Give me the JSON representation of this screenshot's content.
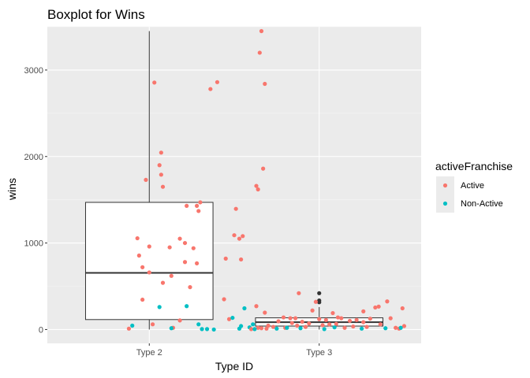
{
  "chart_data": {
    "type": "boxplot",
    "title": "Boxplot for Wins",
    "xlabel": "Type ID",
    "ylabel": "wins",
    "categories": [
      "Type 2",
      "Type 3"
    ],
    "ylim": [
      -160,
      3500
    ],
    "yticks": [
      0,
      1000,
      2000,
      3000
    ],
    "grid": true,
    "boxes": [
      {
        "category": "Type 2",
        "min": 0,
        "q1": 115,
        "median": 655,
        "q3": 1470,
        "max": 3450,
        "outliers": []
      },
      {
        "category": "Type 3",
        "min": 0,
        "q1": 40,
        "median": 85,
        "q3": 135,
        "max": 260,
        "outliers": [
          420,
          335,
          315
        ]
      }
    ],
    "legend": {
      "title": "activeFranchise",
      "placement": "right",
      "entries": [
        {
          "label": "Active",
          "color": "#F8766D"
        },
        {
          "label": "Non-Active",
          "color": "#00BFC4"
        }
      ]
    },
    "points": [
      {
        "x": 0.88,
        "y": 10,
        "g": "Active"
      },
      {
        "x": 0.93,
        "y": 1055,
        "g": "Active"
      },
      {
        "x": 0.94,
        "y": 855,
        "g": "Active"
      },
      {
        "x": 0.96,
        "y": 720,
        "g": "Active"
      },
      {
        "x": 0.96,
        "y": 345,
        "g": "Active"
      },
      {
        "x": 0.98,
        "y": 1730,
        "g": "Active"
      },
      {
        "x": 1.0,
        "y": 960,
        "g": "Active"
      },
      {
        "x": 1.0,
        "y": 660,
        "g": "Active"
      },
      {
        "x": 1.02,
        "y": 60,
        "g": "Active"
      },
      {
        "x": 1.03,
        "y": 2855,
        "g": "Active"
      },
      {
        "x": 1.06,
        "y": 1900,
        "g": "Active"
      },
      {
        "x": 1.07,
        "y": 1790,
        "g": "Active"
      },
      {
        "x": 1.07,
        "y": 2045,
        "g": "Active"
      },
      {
        "x": 1.08,
        "y": 1650,
        "g": "Active"
      },
      {
        "x": 1.08,
        "y": 540,
        "g": "Active"
      },
      {
        "x": 1.12,
        "y": 950,
        "g": "Active"
      },
      {
        "x": 1.13,
        "y": 620,
        "g": "Active"
      },
      {
        "x": 1.14,
        "y": 20,
        "g": "Active"
      },
      {
        "x": 1.18,
        "y": 105,
        "g": "Active"
      },
      {
        "x": 1.18,
        "y": 1050,
        "g": "Active"
      },
      {
        "x": 1.21,
        "y": 780,
        "g": "Active"
      },
      {
        "x": 1.21,
        "y": 1000,
        "g": "Active"
      },
      {
        "x": 1.22,
        "y": 1430,
        "g": "Active"
      },
      {
        "x": 1.24,
        "y": 490,
        "g": "Active"
      },
      {
        "x": 1.26,
        "y": 940,
        "g": "Active"
      },
      {
        "x": 1.28,
        "y": 765,
        "g": "Active"
      },
      {
        "x": 1.28,
        "y": 1430,
        "g": "Active"
      },
      {
        "x": 1.29,
        "y": 1370,
        "g": "Active"
      },
      {
        "x": 1.3,
        "y": 1470,
        "g": "Active"
      },
      {
        "x": 1.36,
        "y": 2780,
        "g": "Active"
      },
      {
        "x": 1.4,
        "y": 2860,
        "g": "Active"
      },
      {
        "x": 1.45,
        "y": 820,
        "g": "Active"
      },
      {
        "x": 1.44,
        "y": 350,
        "g": "Active"
      },
      {
        "x": 1.47,
        "y": 120,
        "g": "Active"
      },
      {
        "x": 1.5,
        "y": 1090,
        "g": "Active"
      },
      {
        "x": 1.51,
        "y": 1395,
        "g": "Active"
      },
      {
        "x": 1.53,
        "y": 1050,
        "g": "Active"
      },
      {
        "x": 1.54,
        "y": 810,
        "g": "Active"
      },
      {
        "x": 1.55,
        "y": 1080,
        "g": "Active"
      },
      {
        "x": 1.63,
        "y": 1660,
        "g": "Active"
      },
      {
        "x": 1.64,
        "y": 1620,
        "g": "Active"
      },
      {
        "x": 1.65,
        "y": 3200,
        "g": "Active"
      },
      {
        "x": 1.66,
        "y": 3450,
        "g": "Active"
      },
      {
        "x": 1.67,
        "y": 1860,
        "g": "Active"
      },
      {
        "x": 1.68,
        "y": 2840,
        "g": "Active"
      },
      {
        "x": 1.68,
        "y": 195,
        "g": "Active"
      },
      {
        "x": 1.63,
        "y": 270,
        "g": "Active"
      },
      {
        "x": 0.9,
        "y": 45,
        "g": "Non-Active"
      },
      {
        "x": 1.06,
        "y": 260,
        "g": "Non-Active"
      },
      {
        "x": 1.13,
        "y": 15,
        "g": "Non-Active"
      },
      {
        "x": 1.22,
        "y": 270,
        "g": "Non-Active"
      },
      {
        "x": 1.29,
        "y": 60,
        "g": "Non-Active"
      },
      {
        "x": 1.31,
        "y": 5,
        "g": "Non-Active"
      },
      {
        "x": 1.34,
        "y": 5,
        "g": "Non-Active"
      },
      {
        "x": 1.38,
        "y": 0,
        "g": "Non-Active"
      },
      {
        "x": 1.49,
        "y": 135,
        "g": "Non-Active"
      },
      {
        "x": 1.53,
        "y": 10,
        "g": "Non-Active"
      },
      {
        "x": 1.54,
        "y": 40,
        "g": "Non-Active"
      },
      {
        "x": 1.56,
        "y": 245,
        "g": "Non-Active"
      },
      {
        "x": 1.59,
        "y": 25,
        "g": "Non-Active"
      },
      {
        "x": 1.61,
        "y": 60,
        "g": "Non-Active"
      },
      {
        "x": 1.6,
        "y": 5,
        "g": "Active"
      },
      {
        "x": 1.64,
        "y": 20,
        "g": "Active"
      },
      {
        "x": 1.66,
        "y": 15,
        "g": "Active"
      },
      {
        "x": 1.69,
        "y": 10,
        "g": "Active"
      },
      {
        "x": 1.73,
        "y": 30,
        "g": "Active"
      },
      {
        "x": 1.76,
        "y": 95,
        "g": "Active"
      },
      {
        "x": 1.79,
        "y": 140,
        "g": "Active"
      },
      {
        "x": 1.8,
        "y": 20,
        "g": "Active"
      },
      {
        "x": 1.84,
        "y": 75,
        "g": "Active"
      },
      {
        "x": 1.86,
        "y": 130,
        "g": "Active"
      },
      {
        "x": 1.87,
        "y": 45,
        "g": "Active"
      },
      {
        "x": 1.88,
        "y": 420,
        "g": "Active"
      },
      {
        "x": 1.9,
        "y": 90,
        "g": "Active"
      },
      {
        "x": 1.92,
        "y": 30,
        "g": "Active"
      },
      {
        "x": 1.94,
        "y": 70,
        "g": "Active"
      },
      {
        "x": 1.96,
        "y": 220,
        "g": "Active"
      },
      {
        "x": 1.98,
        "y": 320,
        "g": "Active"
      },
      {
        "x": 2.0,
        "y": 120,
        "g": "Active"
      },
      {
        "x": 2.02,
        "y": 50,
        "g": "Active"
      },
      {
        "x": 2.04,
        "y": 110,
        "g": "Active"
      },
      {
        "x": 2.06,
        "y": 60,
        "g": "Active"
      },
      {
        "x": 2.08,
        "y": 190,
        "g": "Active"
      },
      {
        "x": 2.1,
        "y": 65,
        "g": "Active"
      },
      {
        "x": 2.13,
        "y": 130,
        "g": "Active"
      },
      {
        "x": 2.15,
        "y": 20,
        "g": "Active"
      },
      {
        "x": 2.18,
        "y": 100,
        "g": "Active"
      },
      {
        "x": 2.2,
        "y": 35,
        "g": "Active"
      },
      {
        "x": 2.22,
        "y": 110,
        "g": "Active"
      },
      {
        "x": 2.26,
        "y": 85,
        "g": "Active"
      },
      {
        "x": 2.28,
        "y": 30,
        "g": "Active"
      },
      {
        "x": 2.3,
        "y": 125,
        "g": "Active"
      },
      {
        "x": 2.33,
        "y": 255,
        "g": "Active"
      },
      {
        "x": 2.35,
        "y": 265,
        "g": "Active"
      },
      {
        "x": 2.36,
        "y": 60,
        "g": "Active"
      },
      {
        "x": 2.4,
        "y": 325,
        "g": "Active"
      },
      {
        "x": 2.42,
        "y": 130,
        "g": "Active"
      },
      {
        "x": 2.45,
        "y": 20,
        "g": "Active"
      },
      {
        "x": 2.47,
        "y": 10,
        "g": "Active"
      },
      {
        "x": 2.49,
        "y": 245,
        "g": "Active"
      },
      {
        "x": 2.5,
        "y": 40,
        "g": "Active"
      },
      {
        "x": 2.26,
        "y": 210,
        "g": "Active"
      },
      {
        "x": 2.11,
        "y": 140,
        "g": "Active"
      },
      {
        "x": 1.83,
        "y": 130,
        "g": "Active"
      },
      {
        "x": 1.7,
        "y": 45,
        "g": "Active"
      },
      {
        "x": 1.62,
        "y": 5,
        "g": "Non-Active"
      },
      {
        "x": 1.75,
        "y": 10,
        "g": "Non-Active"
      },
      {
        "x": 1.81,
        "y": 20,
        "g": "Non-Active"
      },
      {
        "x": 1.89,
        "y": 15,
        "g": "Non-Active"
      },
      {
        "x": 2.03,
        "y": 5,
        "g": "Non-Active"
      },
      {
        "x": 2.09,
        "y": 25,
        "g": "Non-Active"
      },
      {
        "x": 2.25,
        "y": 10,
        "g": "Non-Active"
      },
      {
        "x": 2.39,
        "y": 15,
        "g": "Non-Active"
      },
      {
        "x": 2.48,
        "y": 20,
        "g": "Non-Active"
      }
    ]
  }
}
